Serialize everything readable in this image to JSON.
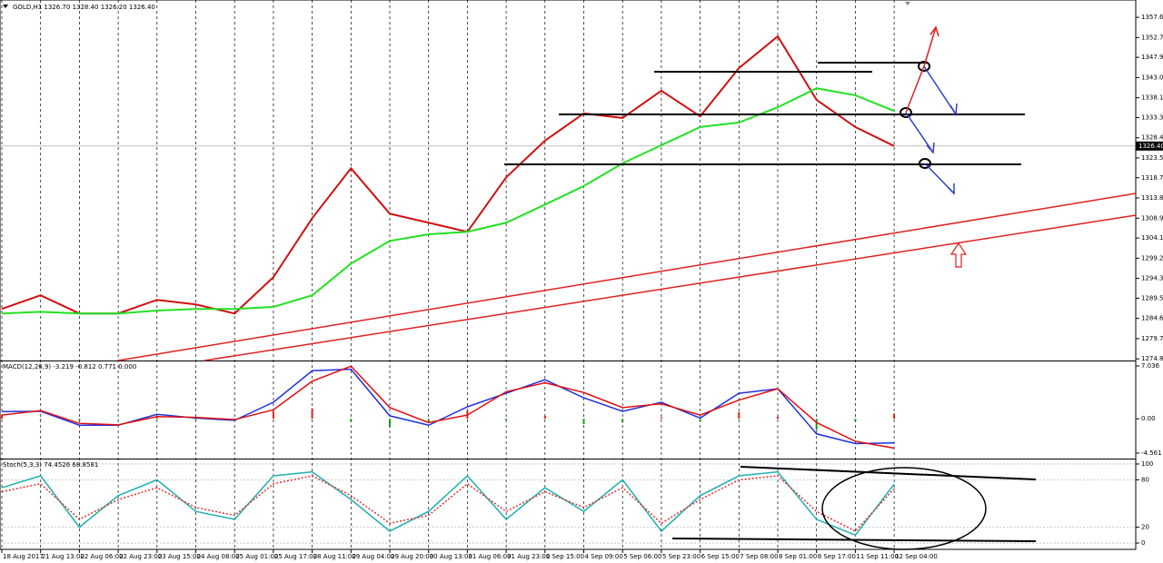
{
  "chart_data": [
    {
      "type": "line",
      "title": "GOLD,H1 1326.70 1328.40 1326.20 1326.40",
      "categories": [
        "18 Aug 2017",
        "21 Aug 13:00",
        "22 Aug 06:00",
        "22 Aug 23:00",
        "23 Aug 15:00",
        "24 Aug 08:00",
        "25 Aug 01:00",
        "25 Aug 17:00",
        "28 Aug 11:00",
        "29 Aug 04:00",
        "29 Aug 20:00",
        "30 Aug 13:00",
        "31 Aug 06:00",
        "31 Aug 23:00",
        "1 Sep 15:00",
        "4 Sep 09:00",
        "5 Sep 06:00",
        "5 Sep 23:00",
        "6 Sep 15:00",
        "7 Sep 08:00",
        "8 Sep 01:00",
        "8 Sep 17:00",
        "11 Sep 11:00",
        "12 Sep 04:00"
      ],
      "series": [
        {
          "color": "#d01010",
          "values": [
            1286.9,
            1290.2,
            1285.8,
            1285.8,
            1289.1,
            1288.0,
            1285.8,
            1294.6,
            1308.9,
            1321.0,
            1310.0,
            1307.8,
            1305.6,
            1318.8,
            1327.7,
            1334.3,
            1333.2,
            1339.8,
            1333.6,
            1345.3,
            1353.0,
            1337.6,
            1331.0,
            1326.4
          ]
        },
        {
          "color": "#22e022",
          "values": [
            1285.8,
            1286.2,
            1285.8,
            1285.8,
            1286.5,
            1286.9,
            1286.9,
            1287.4,
            1290.2,
            1297.9,
            1303.4,
            1305.0,
            1305.6,
            1307.8,
            1312.2,
            1316.7,
            1322.2,
            1326.6,
            1331.0,
            1332.1,
            1335.8,
            1340.4,
            1338.7,
            1334.9
          ]
        }
      ],
      "marker": {
        "value": 1326.4,
        "label": "1326.40"
      },
      "ylim": [
        1274.4,
        1361.8
      ],
      "yticks": [
        {
          "value": 1357.6,
          "label": "1357.60"
        },
        {
          "value": 1352.7,
          "label": "1352.70"
        },
        {
          "value": 1347.9,
          "label": "1347.90"
        },
        {
          "value": 1343,
          "label": "1343.00"
        },
        {
          "value": 1338.1,
          "label": "1338.10"
        },
        {
          "value": 1333.3,
          "label": "1333.30"
        },
        {
          "value": 1328.4,
          "label": "1328.40"
        },
        {
          "value": 1323.5,
          "label": "1323.50"
        },
        {
          "value": 1318.7,
          "label": "1318.70"
        },
        {
          "value": 1313.8,
          "label": "1313.80"
        },
        {
          "value": 1308.9,
          "label": "1308.90"
        },
        {
          "value": 1304.1,
          "label": "1304.10"
        },
        {
          "value": 1299.2,
          "label": "1299.20"
        },
        {
          "value": 1294.3,
          "label": "1294.30"
        },
        {
          "value": 1289.5,
          "label": "1289.50"
        },
        {
          "value": 1284.6,
          "label": "1284.60"
        },
        {
          "value": 1279.7,
          "label": "1279.70"
        },
        {
          "value": 1274.8,
          "label": "1274.80"
        }
      ]
    },
    {
      "type": "line",
      "title": "MACD(12,26,9) -3.219 -0.812 0.771 0.000",
      "histogram": {
        "up_color": "#e02020",
        "down_color": "#1a9a1a",
        "values": [
          0.47,
          -0.1,
          -0.25,
          -0.05,
          0.3,
          -0.1,
          -0.1,
          1.0,
          1.4,
          -0.4,
          -1.1,
          -0.35,
          1.1,
          -0.2,
          0.4,
          -0.7,
          -0.5,
          0.2,
          -0.4,
          0.9,
          0.3,
          -1.5,
          -0.3,
          0.7
        ]
      },
      "series": [
        {
          "color": "#2030e0",
          "values": [
            0.97,
            1.0,
            -0.85,
            -0.85,
            0.6,
            0.1,
            -0.2,
            2.2,
            6.4,
            6.6,
            0.4,
            -0.85,
            1.6,
            3.4,
            5.2,
            2.8,
            1.0,
            2.2,
            0.1,
            3.4,
            4.0,
            -2.0,
            -3.3,
            -3.2
          ]
        },
        {
          "color": "#e01010",
          "values": [
            0.5,
            1.1,
            -0.6,
            -0.8,
            0.3,
            0.2,
            -0.1,
            1.2,
            5.0,
            7.0,
            1.5,
            -0.5,
            0.5,
            3.6,
            4.8,
            3.5,
            1.5,
            2.0,
            0.5,
            2.5,
            4.0,
            -0.5,
            -3.0,
            -3.9
          ]
        }
      ],
      "ylim": [
        -5.29,
        7.64
      ],
      "yticks": [
        7.036,
        {
          "value": 0,
          "label": "0.00"
        },
        -4.561
      ]
    },
    {
      "type": "line",
      "title": "Stoch(5,3,3) 74.4526 68.8581",
      "series": [
        {
          "color": "#20b0b0",
          "values": [
            70,
            85,
            20,
            60,
            80,
            40,
            30,
            85,
            90,
            55,
            15,
            40,
            85,
            30,
            70,
            40,
            80,
            15,
            60,
            85,
            90,
            30,
            10,
            74.4526
          ]
        },
        {
          "color": "#e03030",
          "dashed": true,
          "values": [
            65,
            75,
            30,
            55,
            70,
            45,
            35,
            75,
            85,
            60,
            25,
            35,
            75,
            40,
            65,
            45,
            70,
            25,
            55,
            80,
            85,
            40,
            15,
            68.8581
          ]
        }
      ],
      "ylim": [
        -8,
        105.7
      ],
      "yticks": [
        100,
        80,
        20,
        0
      ]
    }
  ]
}
